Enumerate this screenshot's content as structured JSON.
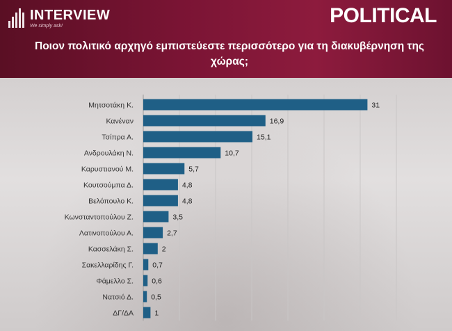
{
  "header": {
    "logo_text": "INTERVIEW",
    "logo_tagline": "We simply ask!",
    "brand": "POLITICAL",
    "colors": {
      "banner": "#7a1434",
      "bar": "#1f5f86"
    }
  },
  "chart_data": {
    "type": "bar",
    "orientation": "horizontal",
    "title": "Ποιον πολιτικό αρχηγό εμπιστεύεστε περισσότερο για τη διακυβέρνηση της χώρας;",
    "categories": [
      "Μητσοτάκη Κ.",
      "Κανέναν",
      "Τσίπρα Α.",
      "Ανδρουλάκη Ν.",
      "Καρυστιανού Μ.",
      "Κουτσούμπα Δ.",
      "Βελόπουλο Κ.",
      "Κωνσταντοπούλου Ζ.",
      "Λατινοπούλου Α.",
      "Κασσελάκη Σ.",
      "Σακελλαρίδης Γ.",
      "Φάμελλο Σ.",
      "Νατσιό Δ.",
      "ΔΓ/ΔΑ"
    ],
    "values": [
      31,
      16.9,
      15.1,
      10.7,
      5.7,
      4.8,
      4.8,
      3.5,
      2.7,
      2,
      0.7,
      0.6,
      0.5,
      1
    ],
    "value_labels": [
      "31",
      "16,9",
      "15,1",
      "10,7",
      "5,7",
      "4,8",
      "4,8",
      "3,5",
      "2,7",
      "2",
      "0,7",
      "0,6",
      "0,5",
      "1"
    ],
    "xlim": [
      0,
      35
    ],
    "grid": true
  }
}
